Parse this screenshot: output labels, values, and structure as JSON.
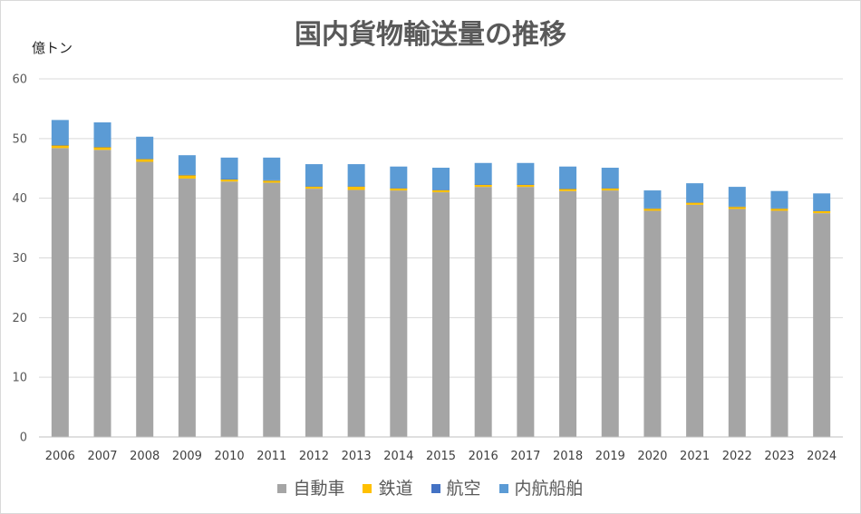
{
  "chart_data": {
    "type": "bar",
    "stacked": true,
    "title": "国内貨物輸送量の推移",
    "xlabel": "",
    "ylabel": "億トン",
    "ylim": [
      0,
      60
    ],
    "yticks": [
      0,
      10,
      20,
      30,
      40,
      50,
      60
    ],
    "grid": true,
    "legend": "bottom",
    "categories": [
      "2006",
      "2007",
      "2008",
      "2009",
      "2010",
      "2011",
      "2012",
      "2013",
      "2014",
      "2015",
      "2016",
      "2017",
      "2018",
      "2019",
      "2020",
      "2021",
      "2022",
      "2023",
      "2024"
    ],
    "series": [
      {
        "name": "自動車",
        "color": "#A5A5A5",
        "values": [
          48.4,
          48.1,
          46.1,
          43.3,
          42.8,
          42.6,
          41.6,
          41.4,
          41.3,
          41.0,
          41.9,
          41.9,
          41.2,
          41.3,
          37.9,
          38.9,
          38.2,
          37.9,
          37.5
        ]
      },
      {
        "name": "鉄道",
        "color": "#FFC000",
        "values": [
          0.5,
          0.5,
          0.5,
          0.6,
          0.4,
          0.4,
          0.4,
          0.6,
          0.4,
          0.4,
          0.4,
          0.4,
          0.4,
          0.4,
          0.4,
          0.4,
          0.4,
          0.4,
          0.4
        ]
      },
      {
        "name": "航空",
        "color": "#4472C4",
        "values": [
          0.01,
          0.01,
          0.01,
          0.01,
          0.01,
          0.01,
          0.01,
          0.01,
          0.01,
          0.01,
          0.01,
          0.01,
          0.01,
          0.01,
          0.01,
          0.01,
          0.01,
          0.01,
          0.01
        ]
      },
      {
        "name": "内航船舶",
        "color": "#5B9BD5",
        "values": [
          4.2,
          4.1,
          3.7,
          3.3,
          3.6,
          3.8,
          3.7,
          3.7,
          3.6,
          3.7,
          3.6,
          3.6,
          3.7,
          3.4,
          3.0,
          3.2,
          3.3,
          2.9,
          2.9
        ]
      }
    ],
    "gridline_color": "#D9D9D9",
    "axis_color": "#BFBFBF"
  }
}
